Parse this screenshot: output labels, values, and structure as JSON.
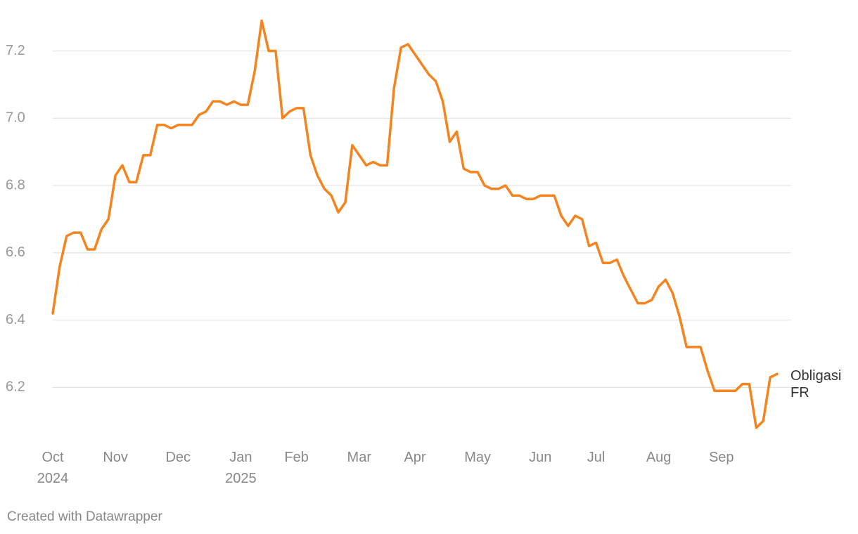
{
  "chart_data": {
    "type": "line",
    "categories": [
      "Oct\n2024",
      null,
      null,
      null,
      null,
      null,
      null,
      null,
      null,
      "Nov",
      null,
      null,
      null,
      null,
      null,
      null,
      null,
      null,
      "Dec",
      null,
      null,
      null,
      null,
      null,
      null,
      null,
      null,
      "Jan\n2025",
      null,
      null,
      null,
      null,
      null,
      null,
      null,
      "Feb",
      null,
      null,
      null,
      null,
      null,
      null,
      null,
      null,
      "Mar",
      null,
      null,
      null,
      null,
      null,
      null,
      null,
      "Apr",
      null,
      null,
      null,
      null,
      null,
      null,
      null,
      null,
      "May",
      null,
      null,
      null,
      null,
      null,
      null,
      null,
      null,
      "Jun",
      null,
      null,
      null,
      null,
      null,
      null,
      null,
      "Jul",
      null,
      null,
      null,
      null,
      null,
      null,
      null,
      null,
      "Aug",
      null,
      null,
      null,
      null,
      null,
      null,
      null,
      null,
      "Sep",
      null,
      null,
      null,
      null,
      null,
      null,
      null,
      null
    ],
    "series": [
      {
        "name": "Obligasi FR",
        "color": "#f5841f",
        "values": [
          6.42,
          6.56,
          6.65,
          6.66,
          6.66,
          6.61,
          6.61,
          6.67,
          6.7,
          6.83,
          6.86,
          6.81,
          6.81,
          6.89,
          6.89,
          6.98,
          6.98,
          6.97,
          6.98,
          6.98,
          6.98,
          7.01,
          7.02,
          7.05,
          7.05,
          7.04,
          7.05,
          7.04,
          7.04,
          7.14,
          7.29,
          7.2,
          7.2,
          7.0,
          7.02,
          7.03,
          7.03,
          6.89,
          6.83,
          6.79,
          6.77,
          6.72,
          6.75,
          6.92,
          6.89,
          6.86,
          6.87,
          6.86,
          6.86,
          7.09,
          7.21,
          7.22,
          7.19,
          7.16,
          7.13,
          7.11,
          7.05,
          6.93,
          6.96,
          6.85,
          6.84,
          6.84,
          6.8,
          6.79,
          6.79,
          6.8,
          6.77,
          6.77,
          6.76,
          6.76,
          6.77,
          6.77,
          6.77,
          6.71,
          6.68,
          6.71,
          6.7,
          6.62,
          6.63,
          6.57,
          6.57,
          6.58,
          6.53,
          6.49,
          6.45,
          6.45,
          6.46,
          6.5,
          6.52,
          6.48,
          6.41,
          6.32,
          6.32,
          6.32,
          6.25,
          6.19,
          6.19,
          6.19,
          6.19,
          6.21,
          6.21,
          6.08,
          6.1,
          6.23,
          6.24
        ]
      }
    ],
    "ylim": [
      6.04,
      7.32
    ],
    "yticks": [
      6.2,
      6.4,
      6.6,
      6.8,
      {
        "value": 7,
        "label": "7.0"
      },
      7.2
    ],
    "grid": true,
    "footer": "Created with Datawrapper"
  }
}
